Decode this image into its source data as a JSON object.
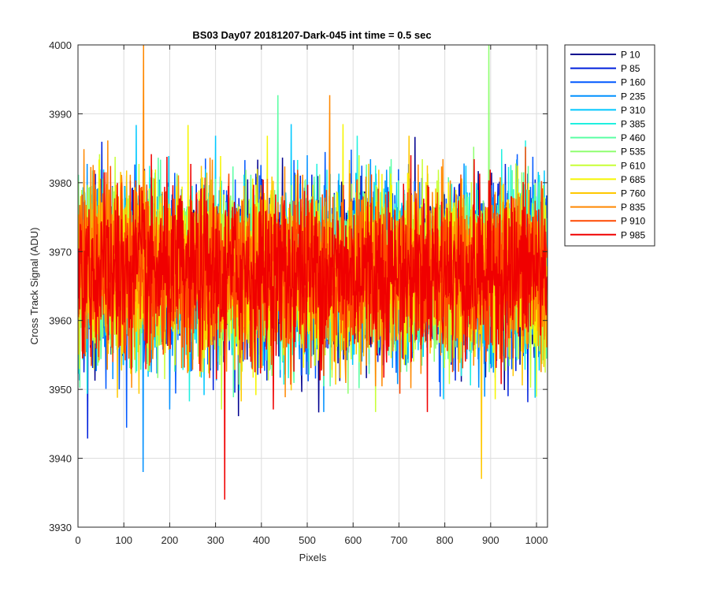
{
  "chart_data": {
    "type": "line",
    "title": "BS03 Day07 20181207-Dark-045 int time = 0.5 sec",
    "xlabel": "Pixels",
    "ylabel": "Cross Track Signal (ADU)",
    "xlim": [
      0,
      1024
    ],
    "ylim": [
      3930,
      4000
    ],
    "grid": true,
    "legend_position": "outside-top-right",
    "x_ticks": [
      0,
      100,
      200,
      300,
      400,
      500,
      600,
      700,
      800,
      900,
      1000
    ],
    "x_tick_labels": [
      "0",
      "100",
      "200",
      "300",
      "400",
      "500",
      "600",
      "700",
      "800",
      "900",
      "1000"
    ],
    "y_ticks": [
      3930,
      3940,
      3950,
      3960,
      3970,
      3980,
      3990,
      4000
    ],
    "y_tick_labels": [
      "3930",
      "3940",
      "3950",
      "3960",
      "3970",
      "3980",
      "3990",
      "4000"
    ],
    "n_points": 1024,
    "series_mean": 3967,
    "series_spread": 6,
    "series": [
      {
        "name": "P 10",
        "color": "#00008f"
      },
      {
        "name": "P 85",
        "color": "#0020dc"
      },
      {
        "name": "P 160",
        "color": "#0058ff"
      },
      {
        "name": "P 235",
        "color": "#0090ff"
      },
      {
        "name": "P 310",
        "color": "#00c8ff"
      },
      {
        "name": "P 385",
        "color": "#1ff0e0"
      },
      {
        "name": "P 460",
        "color": "#5bffa4"
      },
      {
        "name": "P 535",
        "color": "#8fff70"
      },
      {
        "name": "P 610",
        "color": "#c8ff37"
      },
      {
        "name": "P 685",
        "color": "#f5f500"
      },
      {
        "name": "P 760",
        "color": "#ffc800"
      },
      {
        "name": "P 835",
        "color": "#ff8800"
      },
      {
        "name": "P 910",
        "color": "#ff4800"
      },
      {
        "name": "P 985",
        "color": "#f00000"
      }
    ],
    "notable_extremes": [
      {
        "x": 143,
        "y": 4000,
        "series": "P 835"
      },
      {
        "x": 896,
        "y": 4000,
        "series": "P 535"
      },
      {
        "x": 320,
        "y": 3934,
        "series": "P 985"
      },
      {
        "x": 142,
        "y": 3938,
        "series": "P 235"
      },
      {
        "x": 880,
        "y": 3937,
        "series": "P 760"
      }
    ]
  }
}
